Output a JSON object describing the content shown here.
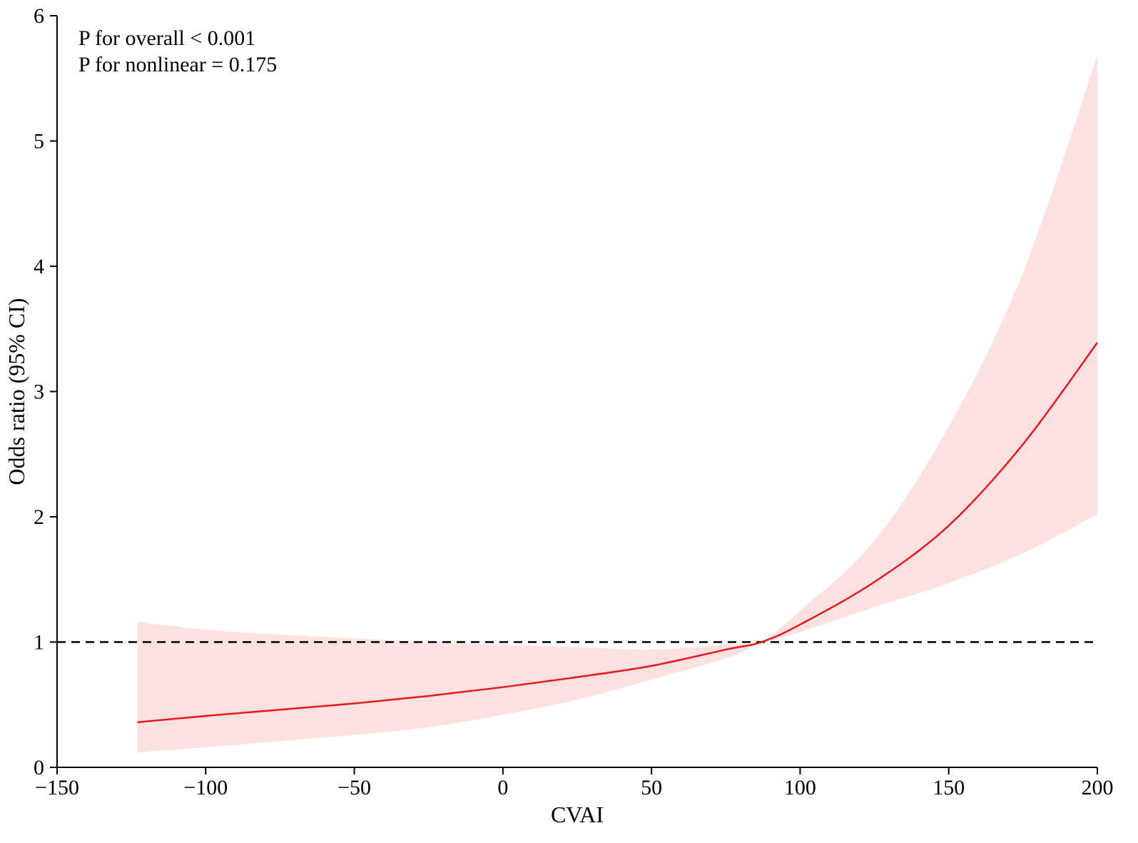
{
  "chart_data": {
    "type": "line",
    "title": "",
    "xlabel": "CVAI",
    "ylabel": "Odds ratio (95% CI)",
    "xlim": [
      -150,
      200
    ],
    "ylim": [
      0,
      6
    ],
    "x_ticks": [
      -150,
      -100,
      -50,
      0,
      50,
      100,
      150,
      200
    ],
    "x_tick_labels": [
      "−150",
      "−100",
      "−50",
      "0",
      "50",
      "100",
      "150",
      "200"
    ],
    "y_ticks": [
      0,
      1,
      2,
      3,
      4,
      5,
      6
    ],
    "y_tick_labels": [
      "0",
      "1",
      "2",
      "3",
      "4",
      "5",
      "6"
    ],
    "reference_line": {
      "y": 1,
      "style": "dashed",
      "color": "#000000"
    },
    "annotations": [
      "P for overall < 0.001",
      "P for nonlinear = 0.175"
    ],
    "colors": {
      "curve": "#e8191c",
      "band": "#fde0e0"
    },
    "series": [
      {
        "x": [
          -123,
          -100,
          -75,
          -50,
          -25,
          0,
          25,
          50,
          75,
          87,
          100,
          125,
          150,
          175,
          200
        ],
        "y": [
          0.36,
          0.41,
          0.46,
          0.51,
          0.57,
          0.64,
          0.72,
          0.81,
          0.94,
          1.0,
          1.14,
          1.48,
          1.93,
          2.58,
          3.39
        ],
        "lower": [
          0.12,
          0.16,
          0.21,
          0.26,
          0.32,
          0.42,
          0.54,
          0.7,
          0.87,
          0.99,
          1.08,
          1.28,
          1.47,
          1.71,
          2.02
        ],
        "upper": [
          1.16,
          1.1,
          1.06,
          1.03,
          1.0,
          0.98,
          0.96,
          0.94,
          0.98,
          1.01,
          1.25,
          1.81,
          2.72,
          3.95,
          5.68
        ]
      }
    ]
  }
}
